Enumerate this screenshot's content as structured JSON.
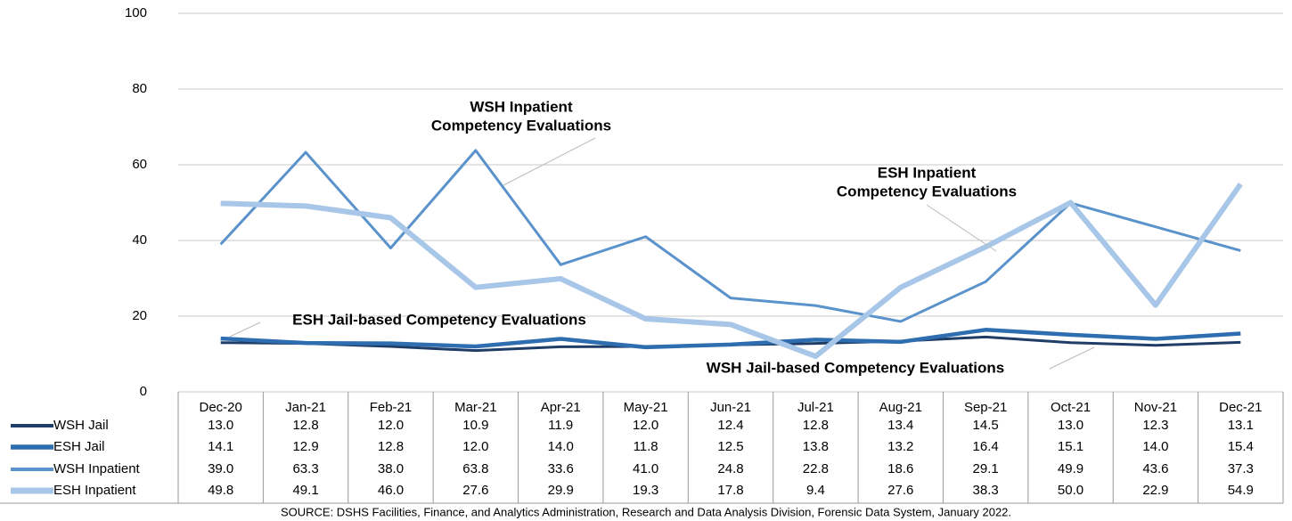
{
  "chart_data": {
    "type": "line",
    "categories": [
      "Dec-20",
      "Jan-21",
      "Feb-21",
      "Mar-21",
      "Apr-21",
      "May-21",
      "Jun-21",
      "Jul-21",
      "Aug-21",
      "Sep-21",
      "Oct-21",
      "Nov-21",
      "Dec-21"
    ],
    "series": [
      {
        "name": "WSH Jail",
        "color": "#1f3d66",
        "values": [
          13.0,
          12.8,
          12.0,
          10.9,
          11.9,
          12.0,
          12.4,
          12.8,
          13.4,
          14.5,
          13.0,
          12.3,
          13.1
        ],
        "value_labels": [
          "13.0",
          "12.8",
          "12.0",
          "10.9",
          "11.9",
          "12.0",
          "12.4",
          "12.8",
          "13.4",
          "14.5",
          "13.0",
          "12.3",
          "13.1"
        ]
      },
      {
        "name": "ESH Jail",
        "color": "#2e6eb0",
        "values": [
          14.1,
          12.9,
          12.8,
          12.0,
          14.0,
          11.8,
          12.5,
          13.8,
          13.2,
          16.4,
          15.1,
          14.0,
          15.4
        ],
        "value_labels": [
          "14.1",
          "12.9",
          "12.8",
          "12.0",
          "14.0",
          "11.8",
          "12.5",
          "13.8",
          "13.2",
          "16.4",
          "15.1",
          "14.0",
          "15.4"
        ]
      },
      {
        "name": "WSH Inpatient",
        "color": "#5a92cb",
        "values": [
          39.0,
          63.3,
          38.0,
          63.8,
          33.6,
          41.0,
          24.8,
          22.8,
          18.6,
          29.1,
          49.9,
          43.6,
          37.3
        ],
        "value_labels": [
          "39.0",
          "63.3",
          "38.0",
          "63.8",
          "33.6",
          "41.0",
          "24.8",
          "22.8",
          "18.6",
          "29.1",
          "49.9",
          "43.6",
          "37.3"
        ]
      },
      {
        "name": "ESH Inpatient",
        "color": "#a7c6e8",
        "values": [
          49.8,
          49.1,
          46.0,
          27.6,
          29.9,
          19.3,
          17.8,
          9.4,
          27.6,
          38.3,
          50.0,
          22.9,
          54.9
        ],
        "value_labels": [
          "49.8",
          "49.1",
          "46.0",
          "27.6",
          "29.9",
          "19.3",
          "17.8",
          "9.4",
          "27.6",
          "38.3",
          "50.0",
          "22.9",
          "54.9"
        ]
      }
    ],
    "ylim": [
      0,
      100
    ],
    "yticks": [
      0,
      20,
      40,
      60,
      80,
      100
    ],
    "grid": true,
    "annotations": [
      {
        "text": [
          "WSH Inpatient",
          "Competency Evaluations"
        ],
        "color": "#4f8ac6"
      },
      {
        "text": [
          "ESH Inpatient",
          "Competency Evaluations"
        ],
        "color": "#6ea3d9"
      },
      {
        "text": [
          "ESH Jail-based Competency Evaluations"
        ],
        "color": "#2e6eb0"
      },
      {
        "text": [
          "WSH Jail-based Competency Evaluations"
        ],
        "color": "#1f4e80"
      }
    ],
    "source": "SOURCE: DSHS Facilities, Finance, and Analytics Administration, Research and Data Analysis Division, Forensic Data System, January 2022."
  }
}
